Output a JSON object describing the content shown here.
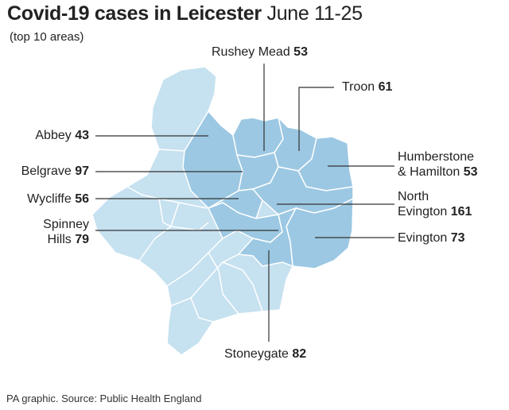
{
  "title": {
    "bold": "Covid-19 cases in Leicester",
    "normal": "June 11-25"
  },
  "subtitle": "(top 10 areas)",
  "source": "PA graphic. Source:  Public Health England",
  "colors": {
    "light": "#c6e1f0",
    "dark": "#9cc8e3",
    "border": "#ffffff",
    "leader": "#333333"
  },
  "areas": [
    {
      "id": "rushey-mead",
      "name": "Rushey Mead",
      "cases": 53
    },
    {
      "id": "troon",
      "name": "Troon",
      "cases": 61
    },
    {
      "id": "abbey",
      "name": "Abbey",
      "cases": 43
    },
    {
      "id": "belgrave",
      "name": "Belgrave",
      "cases": 97
    },
    {
      "id": "humberstone",
      "name_line1": "Humberstone",
      "name_line2": "& Hamilton",
      "cases": 53
    },
    {
      "id": "wycliffe",
      "name": "Wycliffe",
      "cases": 56
    },
    {
      "id": "north-evington",
      "name_line1": "North",
      "name_line2": "Evington",
      "cases": 161
    },
    {
      "id": "spinney-hills",
      "name_line1": "Spinney",
      "name_line2": "Hills",
      "cases": 79
    },
    {
      "id": "evington",
      "name": "Evington",
      "cases": 73
    },
    {
      "id": "stoneygate",
      "name": "Stoneygate",
      "cases": 82
    }
  ]
}
